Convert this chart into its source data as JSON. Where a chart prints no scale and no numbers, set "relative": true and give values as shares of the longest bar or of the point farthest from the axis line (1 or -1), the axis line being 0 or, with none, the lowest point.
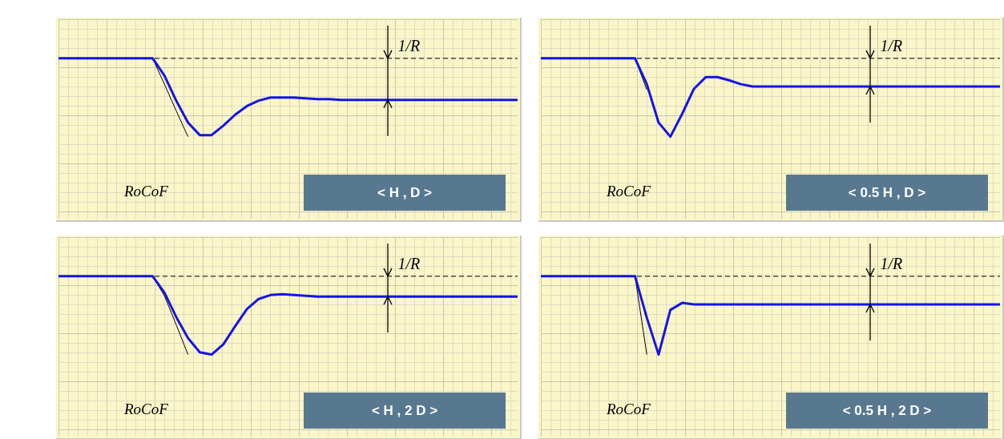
{
  "chart_data": [
    {
      "type": "line",
      "title": "< H , D >",
      "relative": true,
      "grid": true,
      "legend": false,
      "categories": [
        null,
        null,
        null,
        null,
        null,
        null,
        null,
        null,
        null,
        null,
        null,
        null,
        null,
        null,
        null,
        null,
        null,
        null,
        null,
        null,
        null,
        null,
        null,
        null,
        null,
        null,
        null,
        null,
        null,
        null,
        null,
        null,
        null,
        null,
        null,
        null,
        null,
        null,
        null,
        null
      ],
      "series": [
        {
          "color": "#1414e6",
          "values": [
            1,
            1,
            1,
            1,
            1,
            1,
            1,
            1,
            1,
            0.78,
            0.46,
            0.18,
            0.02,
            0.02,
            0.14,
            0.28,
            0.39,
            0.46,
            0.5,
            0.5,
            0.5,
            0.49,
            0.48,
            0.48,
            0.47,
            0.47,
            0.47,
            0.47,
            0.47,
            0.47,
            0.47,
            0.47,
            0.47,
            0.47,
            0.47,
            0.47,
            0.47,
            0.47,
            0.47,
            0.47
          ]
        },
        {
          "color": "#000000",
          "values": [
            null,
            null,
            null,
            null,
            null,
            null,
            null,
            null,
            1,
            0.67,
            0.33,
            0,
            null,
            null,
            null,
            null,
            null,
            null,
            null,
            null,
            null,
            null,
            null,
            null,
            null,
            null,
            null,
            null,
            null,
            null,
            null,
            null,
            null,
            null,
            null,
            null,
            null,
            null,
            null,
            null
          ]
        }
      ],
      "ref_lines": [
        {
          "axis": "y",
          "value": 1,
          "line_style": "dashed",
          "color": "#000000"
        }
      ],
      "annotations": [
        "RoCoF",
        "1/R"
      ]
    },
    {
      "type": "line",
      "title": "< 0.5 H , D >",
      "relative": true,
      "grid": true,
      "legend": false,
      "categories": [
        null,
        null,
        null,
        null,
        null,
        null,
        null,
        null,
        null,
        null,
        null,
        null,
        null,
        null,
        null,
        null,
        null,
        null,
        null,
        null,
        null,
        null,
        null,
        null,
        null,
        null,
        null,
        null,
        null,
        null,
        null,
        null,
        null,
        null,
        null,
        null,
        null,
        null,
        null,
        null
      ],
      "series": [
        {
          "color": "#1414e6",
          "values": [
            1,
            1,
            1,
            1,
            1,
            1,
            1,
            1,
            1,
            0.67,
            0.18,
            0,
            0.29,
            0.61,
            0.76,
            0.76,
            0.72,
            0.67,
            0.64,
            0.64,
            0.64,
            0.64,
            0.64,
            0.64,
            0.64,
            0.64,
            0.64,
            0.64,
            0.64,
            0.64,
            0.64,
            0.64,
            0.64,
            0.64,
            0.64,
            0.64,
            0.64,
            0.64,
            0.64,
            0.64
          ]
        },
        {
          "color": "#000000",
          "values": [
            null,
            null,
            null,
            null,
            null,
            null,
            null,
            null,
            1,
            0.6,
            null,
            null,
            null,
            null,
            null,
            null,
            null,
            null,
            null,
            null,
            null,
            null,
            null,
            null,
            null,
            null,
            null,
            null,
            null,
            null,
            null,
            null,
            null,
            null,
            null,
            null,
            null,
            null,
            null,
            null
          ]
        }
      ],
      "ref_lines": [
        {
          "axis": "y",
          "value": 1,
          "line_style": "dashed",
          "color": "#000000"
        }
      ],
      "annotations": [
        "RoCoF",
        "1/R"
      ]
    },
    {
      "type": "line",
      "title": "< H , 2 D >",
      "relative": true,
      "grid": true,
      "legend": false,
      "categories": [
        null,
        null,
        null,
        null,
        null,
        null,
        null,
        null,
        null,
        null,
        null,
        null,
        null,
        null,
        null,
        null,
        null,
        null,
        null,
        null,
        null,
        null,
        null,
        null,
        null,
        null,
        null,
        null,
        null,
        null,
        null,
        null,
        null,
        null,
        null,
        null,
        null,
        null,
        null,
        null
      ],
      "series": [
        {
          "color": "#1414e6",
          "values": [
            1,
            1,
            1,
            1,
            1,
            1,
            1,
            1,
            1,
            0.79,
            0.48,
            0.21,
            0.03,
            0,
            0.13,
            0.36,
            0.58,
            0.71,
            0.76,
            0.77,
            0.76,
            0.75,
            0.74,
            0.74,
            0.74,
            0.74,
            0.74,
            0.74,
            0.74,
            0.74,
            0.74,
            0.74,
            0.74,
            0.74,
            0.74,
            0.74,
            0.74,
            0.74,
            0.74,
            0.74
          ]
        },
        {
          "color": "#000000",
          "values": [
            null,
            null,
            null,
            null,
            null,
            null,
            null,
            null,
            1,
            0.75,
            0.38,
            0,
            null,
            null,
            null,
            null,
            null,
            null,
            null,
            null,
            null,
            null,
            null,
            null,
            null,
            null,
            null,
            null,
            null,
            null,
            null,
            null,
            null,
            null,
            null,
            null,
            null,
            null,
            null,
            null
          ]
        }
      ],
      "ref_lines": [
        {
          "axis": "y",
          "value": 1,
          "line_style": "dashed",
          "color": "#000000"
        }
      ],
      "annotations": [
        "RoCoF",
        "1/R"
      ]
    },
    {
      "type": "line",
      "title": "< 0.5 H , 2 D >",
      "relative": true,
      "grid": true,
      "legend": false,
      "categories": [
        null,
        null,
        null,
        null,
        null,
        null,
        null,
        null,
        null,
        null,
        null,
        null,
        null,
        null,
        null,
        null,
        null,
        null,
        null,
        null,
        null,
        null,
        null,
        null,
        null,
        null,
        null,
        null,
        null,
        null,
        null,
        null,
        null,
        null,
        null,
        null,
        null,
        null,
        null,
        null
      ],
      "series": [
        {
          "color": "#1414e6",
          "values": [
            1,
            1,
            1,
            1,
            1,
            1,
            1,
            1,
            1,
            0.47,
            0,
            0.57,
            0.66,
            0.64,
            0.64,
            0.64,
            0.64,
            0.64,
            0.64,
            0.64,
            0.64,
            0.64,
            0.64,
            0.64,
            0.64,
            0.64,
            0.64,
            0.64,
            0.64,
            0.64,
            0.64,
            0.64,
            0.64,
            0.64,
            0.64,
            0.64,
            0.64,
            0.64,
            0.64,
            0.64
          ]
        },
        {
          "color": "#000000",
          "values": [
            null,
            null,
            null,
            null,
            null,
            null,
            null,
            null,
            1,
            0,
            null,
            null,
            null,
            null,
            null,
            null,
            null,
            null,
            null,
            null,
            null,
            null,
            null,
            null,
            null,
            null,
            null,
            null,
            null,
            null,
            null,
            null,
            null,
            null,
            null,
            null,
            null,
            null,
            null,
            null
          ]
        }
      ],
      "ref_lines": [
        {
          "axis": "y",
          "value": 1,
          "line_style": "dashed",
          "color": "#000000"
        }
      ],
      "annotations": [
        "RoCoF",
        "1/R"
      ]
    }
  ]
}
